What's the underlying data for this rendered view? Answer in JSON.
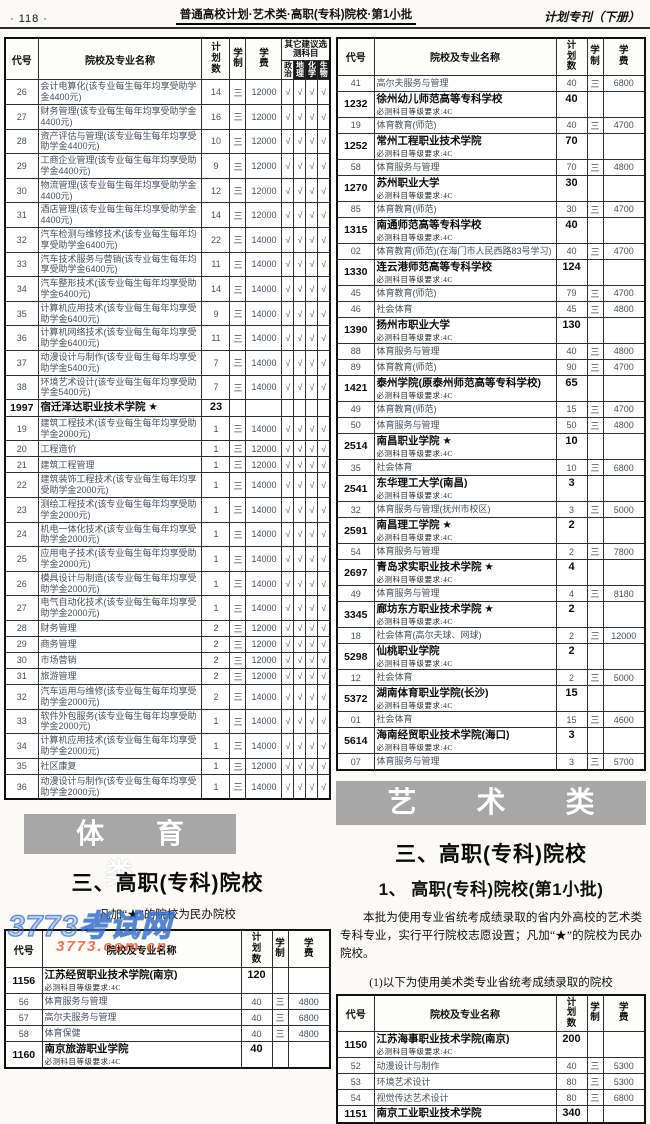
{
  "page": {
    "number": "· 118 ·",
    "center_title": "普通高校计划·艺术类·高职(专科)院校·第1小批",
    "edition": "计划专刊（下册）"
  },
  "banners": {
    "sports": "体 育 类",
    "arts": "艺 术 类"
  },
  "sports_section": {
    "heading": "三、高职(专科)院校",
    "note": "凡加“★”的院校为民办院校"
  },
  "arts_section": {
    "heading": "三、高职(专科)院校",
    "subheading": "1、 高职(专科)院校(第1小批)",
    "paragraph": "本批为使用专业省统考成绩录取的省内外高校的艺术类专科专业，实行平行院校志愿设置；凡加“★”的院校为民办院校。",
    "list_note": "(1)以下为使用美术类专业省统考成绩录取的院校"
  },
  "subject_note": "必测科目等级要求:4C",
  "check_mark": "√",
  "colors": {
    "banner_bg": "#a7a7a7",
    "watermark_blue": "#3a6fc8",
    "watermark_red": "#e8562c"
  },
  "watermark": {
    "line1": "3773考试网",
    "line2": "3773.com.cn"
  },
  "tables": {
    "left_top": {
      "headers": {
        "code": "代号",
        "name": "院校及专业名称",
        "plan": "计划数",
        "years": "学制",
        "fee": "学费",
        "subjects_group": "其它建议选测科目",
        "subjects": [
          {
            "label": "政治",
            "inverted": false
          },
          {
            "label": "地理",
            "inverted": true
          },
          {
            "label": "化学",
            "inverted": true
          },
          {
            "label": "生物",
            "inverted": true
          }
        ]
      },
      "rows": [
        {
          "type": "spec",
          "code": "26",
          "name": "会计电算化(该专业每生每年均享受助学金4400元)",
          "plan": "14",
          "years": "三",
          "fee": "12000",
          "checks": [
            "√",
            "√",
            "√",
            "√"
          ]
        },
        {
          "type": "spec",
          "code": "27",
          "name": "财务管理(该专业每生每年均享受助学金4400元)",
          "plan": "16",
          "years": "三",
          "fee": "12000",
          "checks": [
            "√",
            "√",
            "√",
            "√"
          ]
        },
        {
          "type": "spec",
          "code": "28",
          "name": "资产评估与管理(该专业每生每年均享受助学金4400元)",
          "plan": "10",
          "years": "三",
          "fee": "12000",
          "checks": [
            "√",
            "√",
            "√",
            "√"
          ]
        },
        {
          "type": "spec",
          "code": "29",
          "name": "工商企业管理(该专业每生每年均享受助学金4400元)",
          "plan": "9",
          "years": "三",
          "fee": "12000",
          "checks": [
            "√",
            "√",
            "√",
            "√"
          ]
        },
        {
          "type": "spec",
          "code": "30",
          "name": "物流管理(该专业每生每年均享受助学金4400元)",
          "plan": "12",
          "years": "三",
          "fee": "12000",
          "checks": [
            "√",
            "√",
            "√",
            "√"
          ]
        },
        {
          "type": "spec",
          "code": "31",
          "name": "酒店管理(该专业每生每年均享受助学金4400元)",
          "plan": "14",
          "years": "三",
          "fee": "12000",
          "checks": [
            "√",
            "√",
            "√",
            "√"
          ]
        },
        {
          "type": "spec",
          "code": "32",
          "name": "汽车检测与维修技术(该专业每生每年均享受助学金6400元)",
          "plan": "22",
          "years": "三",
          "fee": "14000",
          "checks": [
            "√",
            "√",
            "√",
            "√"
          ]
        },
        {
          "type": "spec",
          "code": "33",
          "name": "汽车技术服务与营销(该专业每生每年均享受助学金6400元)",
          "plan": "11",
          "years": "三",
          "fee": "14000",
          "checks": [
            "√",
            "√",
            "√",
            "√"
          ]
        },
        {
          "type": "spec",
          "code": "34",
          "name": "汽车整形技术(该专业每生每年均享受助学金6400元)",
          "plan": "14",
          "years": "三",
          "fee": "14000",
          "checks": [
            "√",
            "√",
            "√",
            "√"
          ]
        },
        {
          "type": "spec",
          "code": "35",
          "name": "计算机应用技术(该专业每生每年均享受助学金6400元)",
          "plan": "9",
          "years": "三",
          "fee": "14000",
          "checks": [
            "√",
            "√",
            "√",
            "√"
          ]
        },
        {
          "type": "spec",
          "code": "36",
          "name": "计算机网络技术(该专业每生每年均享受助学金6400元)",
          "plan": "11",
          "years": "三",
          "fee": "14000",
          "checks": [
            "√",
            "√",
            "√",
            "√"
          ]
        },
        {
          "type": "spec",
          "code": "37",
          "name": "动漫设计与制作(该专业每生每年均享受助学金5400元)",
          "plan": "7",
          "years": "三",
          "fee": "14000",
          "checks": [
            "√",
            "√",
            "√",
            "√"
          ]
        },
        {
          "type": "spec",
          "code": "38",
          "name": "环境艺术设计(该专业每生每年均享受助学金5400元)",
          "plan": "7",
          "years": "三",
          "fee": "14000",
          "checks": [
            "√",
            "√",
            "√",
            "√"
          ]
        },
        {
          "type": "school",
          "code": "1997",
          "name": "宿迁泽达职业技术学院 ★",
          "plan": "23",
          "note": ""
        },
        {
          "type": "spec",
          "code": "19",
          "name": "建筑工程技术(该专业每生每年均享受助学金2000元)",
          "plan": "1",
          "years": "三",
          "fee": "14000",
          "checks": [
            "√",
            "√",
            "√",
            "√"
          ]
        },
        {
          "type": "spec",
          "code": "20",
          "name": "工程造价",
          "plan": "1",
          "years": "三",
          "fee": "12000",
          "checks": [
            "√",
            "√",
            "√",
            "√"
          ]
        },
        {
          "type": "spec",
          "code": "21",
          "name": "建筑工程管理",
          "plan": "1",
          "years": "三",
          "fee": "12000",
          "checks": [
            "√",
            "√",
            "√",
            "√"
          ]
        },
        {
          "type": "spec",
          "code": "22",
          "name": "建筑装饰工程技术(该专业每生每年均享受助学金2000元)",
          "plan": "1",
          "years": "三",
          "fee": "14000",
          "checks": [
            "√",
            "√",
            "√",
            "√"
          ]
        },
        {
          "type": "spec",
          "code": "23",
          "name": "测绘工程技术(该专业每生每年均享受助学金2000元)",
          "plan": "1",
          "years": "三",
          "fee": "14000",
          "checks": [
            "√",
            "√",
            "√",
            "√"
          ]
        },
        {
          "type": "spec",
          "code": "24",
          "name": "机电一体化技术(该专业每生每年均享受助学金2000元)",
          "plan": "1",
          "years": "三",
          "fee": "14000",
          "checks": [
            "√",
            "√",
            "√",
            "√"
          ]
        },
        {
          "type": "spec",
          "code": "25",
          "name": "应用电子技术(该专业每生每年均享受助学金2000元)",
          "plan": "1",
          "years": "三",
          "fee": "14000",
          "checks": [
            "√",
            "√",
            "√",
            "√"
          ]
        },
        {
          "type": "spec",
          "code": "26",
          "name": "模具设计与制造(该专业每生每年均享受助学金2000元)",
          "plan": "1",
          "years": "三",
          "fee": "14000",
          "checks": [
            "√",
            "√",
            "√",
            "√"
          ]
        },
        {
          "type": "spec",
          "code": "27",
          "name": "电气自动化技术(该专业每生每年均享受助学金2000元)",
          "plan": "1",
          "years": "三",
          "fee": "14000",
          "checks": [
            "√",
            "√",
            "√",
            "√"
          ]
        },
        {
          "type": "spec",
          "code": "28",
          "name": "财务管理",
          "plan": "2",
          "years": "三",
          "fee": "12000",
          "checks": [
            "√",
            "√",
            "√",
            "√"
          ]
        },
        {
          "type": "spec",
          "code": "29",
          "name": "商务管理",
          "plan": "2",
          "years": "三",
          "fee": "12000",
          "checks": [
            "√",
            "√",
            "√",
            "√"
          ]
        },
        {
          "type": "spec",
          "code": "30",
          "name": "市场营销",
          "plan": "2",
          "years": "三",
          "fee": "12000",
          "checks": [
            "√",
            "√",
            "√",
            "√"
          ]
        },
        {
          "type": "spec",
          "code": "31",
          "name": "旅游管理",
          "plan": "2",
          "years": "三",
          "fee": "12000",
          "checks": [
            "√",
            "√",
            "√",
            "√"
          ]
        },
        {
          "type": "spec",
          "code": "32",
          "name": "汽车运用与维修(该专业每生每年均享受助学金2000元)",
          "plan": "2",
          "years": "三",
          "fee": "14000",
          "checks": [
            "√",
            "√",
            "√",
            "√"
          ]
        },
        {
          "type": "spec",
          "code": "33",
          "name": "软件外包服务(该专业每生每年均享受助学金2000元)",
          "plan": "1",
          "years": "三",
          "fee": "14000",
          "checks": [
            "√",
            "√",
            "√",
            "√"
          ]
        },
        {
          "type": "spec",
          "code": "34",
          "name": "计算机应用技术(该专业每生每年均享受助学金2000元)",
          "plan": "1",
          "years": "三",
          "fee": "14000",
          "checks": [
            "√",
            "√",
            "√",
            "√"
          ]
        },
        {
          "type": "spec",
          "code": "35",
          "name": "社区康复",
          "plan": "1",
          "years": "三",
          "fee": "12000",
          "checks": [
            "√",
            "√",
            "√",
            "√"
          ]
        },
        {
          "type": "spec",
          "code": "36",
          "name": "动漫设计与制作(该专业每生每年均享受助学金2000元)",
          "plan": "1",
          "years": "三",
          "fee": "14000",
          "checks": [
            "√",
            "√",
            "√",
            "√"
          ]
        }
      ]
    },
    "right_top": {
      "headers": {
        "code": "代号",
        "name": "院校及专业名称",
        "plan": "计划数",
        "years": "学制",
        "fee": "学费"
      },
      "rows": [
        {
          "type": "spec",
          "code": "41",
          "name": "高尔夫服务与管理",
          "plan": "40",
          "years": "三",
          "fee": "6800"
        },
        {
          "type": "school",
          "code": "1232",
          "name": "徐州幼儿师范高等专科学校",
          "plan": "40",
          "note": "必测科目等级要求:4C"
        },
        {
          "type": "spec",
          "code": "19",
          "name": "体育教育(师范)",
          "plan": "40",
          "years": "三",
          "fee": "4700"
        },
        {
          "type": "school",
          "code": "1252",
          "name": "常州工程职业技术学院",
          "plan": "70",
          "note": "必测科目等级要求:4C"
        },
        {
          "type": "spec",
          "code": "58",
          "name": "体育服务与管理",
          "plan": "70",
          "years": "三",
          "fee": "4800"
        },
        {
          "type": "school",
          "code": "1270",
          "name": "苏州职业大学",
          "plan": "30",
          "note": "必测科目等级要求:4C"
        },
        {
          "type": "spec",
          "code": "85",
          "name": "体育教育(师范)",
          "plan": "30",
          "years": "三",
          "fee": "4700"
        },
        {
          "type": "school",
          "code": "1315",
          "name": "南通师范高等专科学校",
          "plan": "40",
          "note": "必测科目等级要求:4C"
        },
        {
          "type": "spec",
          "code": "02",
          "name": "体育教育(师范)(在海门市人民西路83号学习)",
          "plan": "40",
          "years": "三",
          "fee": "4700"
        },
        {
          "type": "school",
          "code": "1330",
          "name": "连云港师范高等专科学校",
          "plan": "124",
          "note": "必测科目等级要求:4C"
        },
        {
          "type": "spec",
          "code": "45",
          "name": "体育教育(师范)",
          "plan": "79",
          "years": "三",
          "fee": "4700"
        },
        {
          "type": "spec",
          "code": "46",
          "name": "社会体育",
          "plan": "45",
          "years": "三",
          "fee": "4800"
        },
        {
          "type": "school",
          "code": "1390",
          "name": "扬州市职业大学",
          "plan": "130",
          "note": "必测科目等级要求:4C"
        },
        {
          "type": "spec",
          "code": "88",
          "name": "体育服务与管理",
          "plan": "40",
          "years": "三",
          "fee": "4800"
        },
        {
          "type": "spec",
          "code": "89",
          "name": "体育教育(师范)",
          "plan": "90",
          "years": "三",
          "fee": "4700"
        },
        {
          "type": "school",
          "code": "1421",
          "name": "泰州学院(原泰州师范高等专科学校)",
          "plan": "65",
          "note": "必测科目等级要求:4C"
        },
        {
          "type": "spec",
          "code": "49",
          "name": "体育教育(师范)",
          "plan": "15",
          "years": "三",
          "fee": "4700"
        },
        {
          "type": "spec",
          "code": "50",
          "name": "体育服务与管理",
          "plan": "50",
          "years": "三",
          "fee": "4800"
        },
        {
          "type": "school",
          "code": "2514",
          "name": "南昌职业学院 ★",
          "plan": "10",
          "note": "必测科目等级要求:4C"
        },
        {
          "type": "spec",
          "code": "35",
          "name": "社会体育",
          "plan": "10",
          "years": "三",
          "fee": "6800"
        },
        {
          "type": "school",
          "code": "2541",
          "name": "东华理工大学(南昌)",
          "plan": "3",
          "note": "必测科目等级要求:4C"
        },
        {
          "type": "spec",
          "code": "32",
          "name": "体育服务与管理(抚州市校区)",
          "plan": "3",
          "years": "三",
          "fee": "5000"
        },
        {
          "type": "school",
          "code": "2591",
          "name": "南昌理工学院 ★",
          "plan": "2",
          "note": "必测科目等级要求:4C"
        },
        {
          "type": "spec",
          "code": "54",
          "name": "体育服务与管理",
          "plan": "2",
          "years": "三",
          "fee": "7800"
        },
        {
          "type": "school",
          "code": "2697",
          "name": "青岛求实职业技术学院 ★",
          "plan": "4",
          "note": "必测科目等级要求:4C"
        },
        {
          "type": "spec",
          "code": "49",
          "name": "体育服务与管理",
          "plan": "4",
          "years": "三",
          "fee": "8180"
        },
        {
          "type": "school",
          "code": "3345",
          "name": "廊坊东方职业技术学院 ★",
          "plan": "2",
          "note": "必测科目等级要求:4C"
        },
        {
          "type": "spec",
          "code": "18",
          "name": "社会体育(高尔夫球、网球)",
          "plan": "2",
          "years": "三",
          "fee": "12000"
        },
        {
          "type": "school",
          "code": "5298",
          "name": "仙桃职业学院",
          "plan": "2",
          "note": "必测科目等级要求:4C"
        },
        {
          "type": "spec",
          "code": "12",
          "name": "社会体育",
          "plan": "2",
          "years": "三",
          "fee": "5000"
        },
        {
          "type": "school",
          "code": "5372",
          "name": "湖南体育职业学院(长沙)",
          "plan": "15",
          "note": "必测科目等级要求:4C"
        },
        {
          "type": "spec",
          "code": "01",
          "name": "社会体育",
          "plan": "15",
          "years": "三",
          "fee": "4600"
        },
        {
          "type": "school",
          "code": "5614",
          "name": "海南经贸职业技术学院(海口)",
          "plan": "3",
          "note": "必测科目等级要求:4C"
        },
        {
          "type": "spec",
          "code": "07",
          "name": "体育服务与管理",
          "plan": "3",
          "years": "三",
          "fee": "5700"
        }
      ]
    },
    "left_bottom": {
      "headers": {
        "code": "代号",
        "name": "院校及专业名称",
        "plan": "计划数",
        "years": "学制",
        "fee": "学费"
      },
      "rows": [
        {
          "type": "school",
          "code": "1156",
          "name": "江苏经贸职业技术学院(南京)",
          "plan": "120",
          "note": "必测科目等级要求:4C"
        },
        {
          "type": "spec",
          "code": "56",
          "name": "体育服务与管理",
          "plan": "40",
          "years": "三",
          "fee": "4800"
        },
        {
          "type": "spec",
          "code": "57",
          "name": "高尔夫服务与管理",
          "plan": "40",
          "years": "三",
          "fee": "6800"
        },
        {
          "type": "spec",
          "code": "58",
          "name": "体育保健",
          "plan": "40",
          "years": "三",
          "fee": "4800"
        },
        {
          "type": "school",
          "code": "1160",
          "name": "南京旅游职业学院",
          "plan": "40",
          "note": "必测科目等级要求:4C"
        }
      ]
    },
    "right_bottom": {
      "headers": {
        "code": "代号",
        "name": "院校及专业名称",
        "plan": "计划数",
        "years": "学制",
        "fee": "学费"
      },
      "rows": [
        {
          "type": "school",
          "code": "1150",
          "name": "江苏海事职业技术学院(南京)",
          "plan": "200",
          "note": "必测科目等级要求:4C"
        },
        {
          "type": "spec",
          "code": "52",
          "name": "动漫设计与制作",
          "plan": "40",
          "years": "三",
          "fee": "5300"
        },
        {
          "type": "spec",
          "code": "53",
          "name": "环境艺术设计",
          "plan": "80",
          "years": "三",
          "fee": "5300"
        },
        {
          "type": "spec",
          "code": "54",
          "name": "视觉传达艺术设计",
          "plan": "80",
          "years": "三",
          "fee": "6800"
        },
        {
          "type": "school",
          "code": "1151",
          "name": "南京工业职业技术学院",
          "plan": "340",
          "note": ""
        }
      ]
    }
  }
}
